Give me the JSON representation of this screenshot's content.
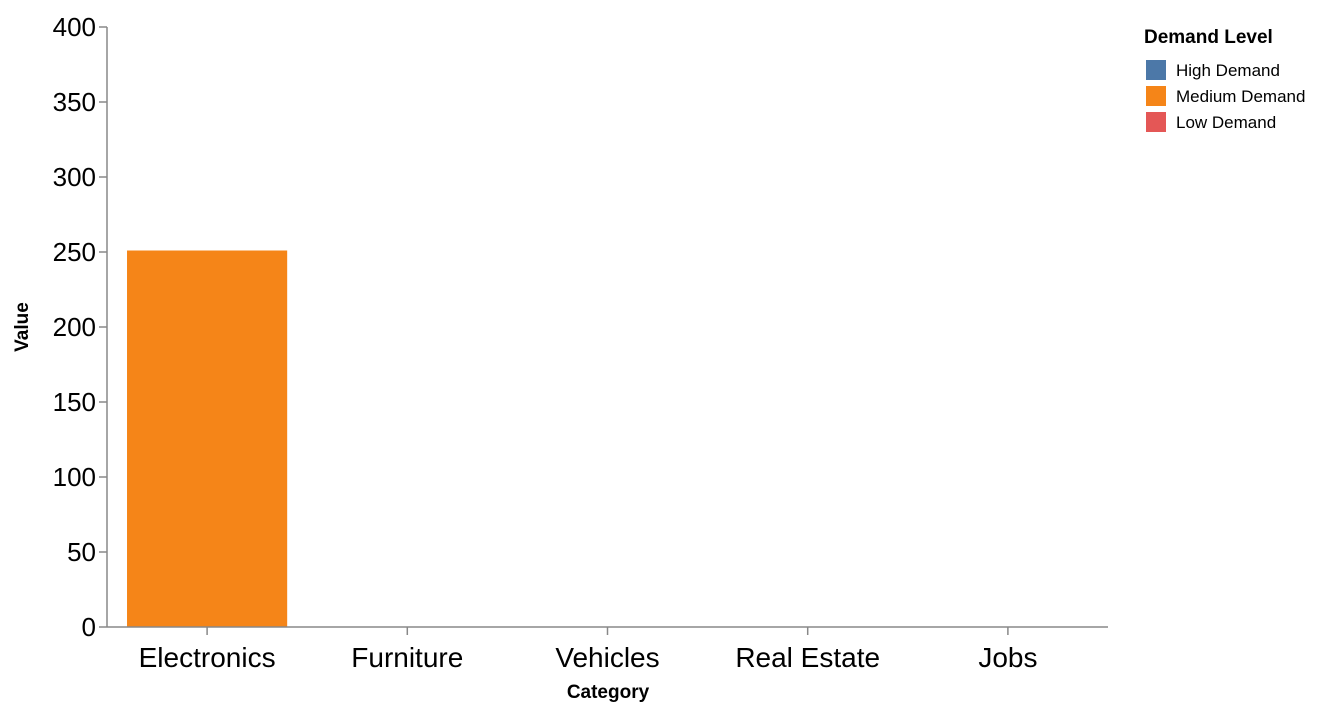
{
  "chart_data": {
    "type": "bar",
    "xlabel": "Category",
    "ylabel": "Value",
    "ylim": [
      0,
      400
    ],
    "yticks": [
      0,
      50,
      100,
      150,
      200,
      250,
      300,
      350,
      400
    ],
    "categories": [
      "Electronics",
      "Furniture",
      "Vehicles",
      "Real Estate",
      "Jobs"
    ],
    "series": [
      {
        "name": "High Demand",
        "color": "#4c78a8",
        "values": [
          0,
          0,
          0,
          0,
          0
        ]
      },
      {
        "name": "Medium Demand",
        "color": "#f58518",
        "values": [
          251,
          0,
          0,
          0,
          0
        ]
      },
      {
        "name": "Low Demand",
        "color": "#e45756",
        "values": [
          0,
          0,
          0,
          0,
          0
        ]
      }
    ],
    "legend": {
      "title": "Demand Level",
      "position": "top-right"
    },
    "grid": false
  }
}
